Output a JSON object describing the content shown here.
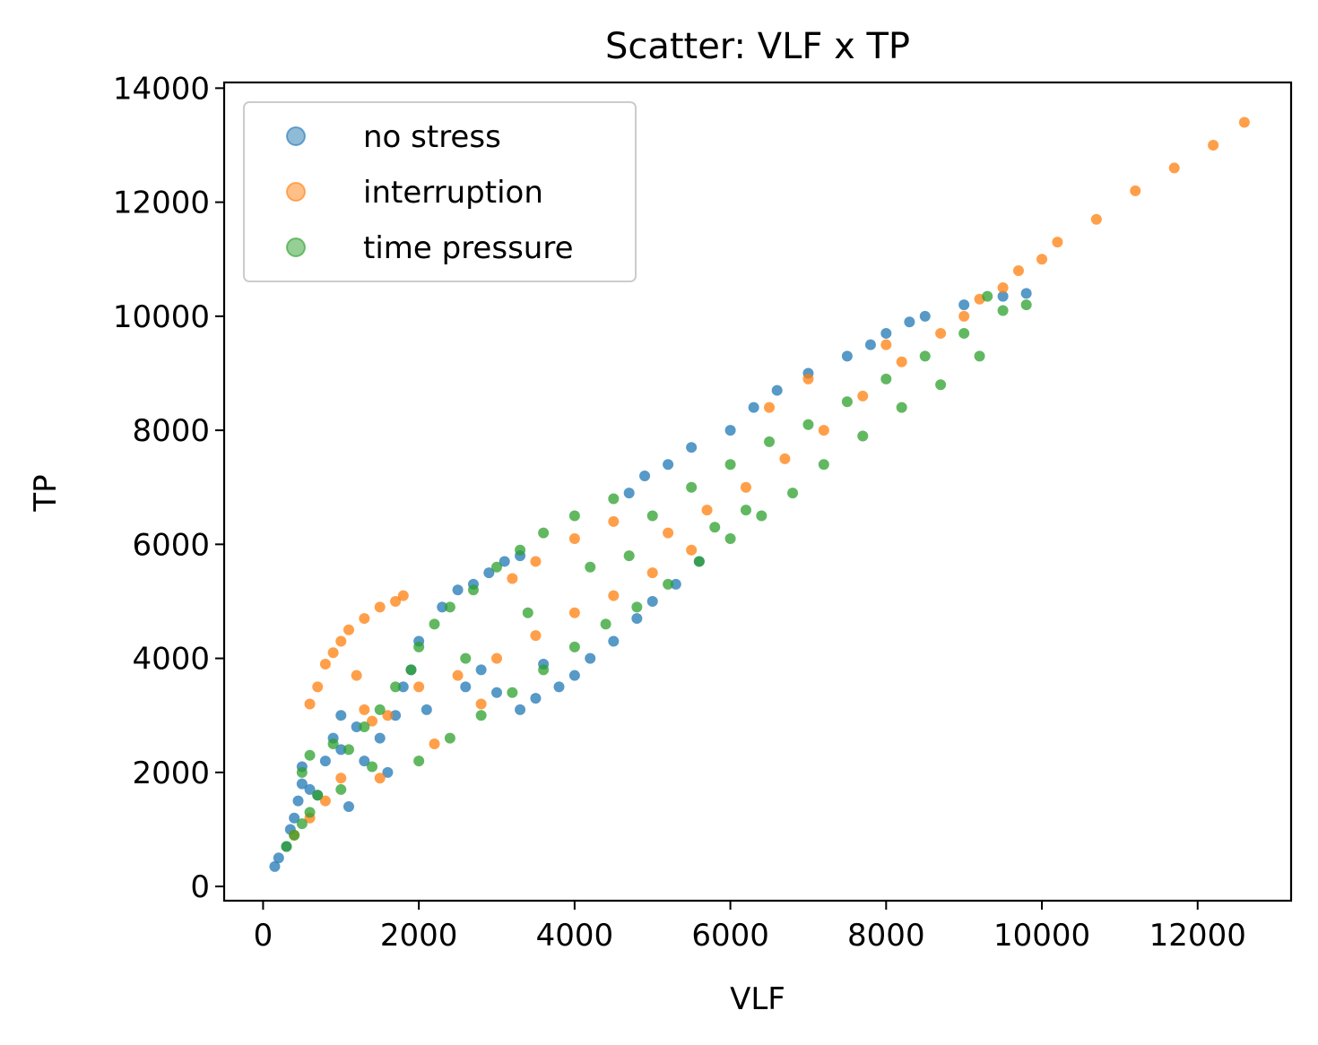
{
  "chart_data": {
    "type": "scatter",
    "title": "Scatter: VLF x TP",
    "xlabel": "VLF",
    "ylabel": "TP",
    "xlim": [
      -500,
      13200
    ],
    "ylim": [
      -250,
      14100
    ],
    "xticks": [
      0,
      2000,
      4000,
      6000,
      8000,
      10000,
      12000
    ],
    "yticks": [
      0,
      2000,
      4000,
      6000,
      8000,
      10000,
      12000,
      14000
    ],
    "grid": false,
    "legend_position": "upper-left",
    "series": [
      {
        "name": "no stress",
        "color": "#1f77b4",
        "points": [
          [
            150,
            350
          ],
          [
            200,
            500
          ],
          [
            300,
            700
          ],
          [
            350,
            1000
          ],
          [
            400,
            1200
          ],
          [
            450,
            1500
          ],
          [
            500,
            1800
          ],
          [
            500,
            2100
          ],
          [
            600,
            1700
          ],
          [
            700,
            1600
          ],
          [
            800,
            2200
          ],
          [
            900,
            2600
          ],
          [
            1000,
            3000
          ],
          [
            1000,
            2400
          ],
          [
            1200,
            2800
          ],
          [
            1300,
            2200
          ],
          [
            1500,
            2600
          ],
          [
            1700,
            3000
          ],
          [
            1800,
            3500
          ],
          [
            1900,
            3800
          ],
          [
            2000,
            4300
          ],
          [
            2100,
            3100
          ],
          [
            2300,
            4900
          ],
          [
            2500,
            5200
          ],
          [
            2700,
            5300
          ],
          [
            2900,
            5500
          ],
          [
            3100,
            5700
          ],
          [
            3300,
            5800
          ],
          [
            2800,
            3800
          ],
          [
            3000,
            3400
          ],
          [
            3300,
            3100
          ],
          [
            3500,
            3300
          ],
          [
            3800,
            3500
          ],
          [
            4000,
            3700
          ],
          [
            4200,
            4000
          ],
          [
            4500,
            4300
          ],
          [
            4800,
            4700
          ],
          [
            5000,
            5000
          ],
          [
            5300,
            5300
          ],
          [
            5600,
            5700
          ],
          [
            4700,
            6900
          ],
          [
            4900,
            7200
          ],
          [
            5200,
            7400
          ],
          [
            5500,
            7700
          ],
          [
            6000,
            8000
          ],
          [
            6300,
            8400
          ],
          [
            6600,
            8700
          ],
          [
            7000,
            9000
          ],
          [
            7500,
            9300
          ],
          [
            8000,
            9700
          ],
          [
            8500,
            10000
          ],
          [
            9000,
            10200
          ],
          [
            9500,
            10350
          ],
          [
            9800,
            10400
          ],
          [
            7800,
            9500
          ],
          [
            8300,
            9900
          ],
          [
            3600,
            3900
          ],
          [
            2600,
            3500
          ],
          [
            1600,
            2000
          ],
          [
            1100,
            1400
          ]
        ]
      },
      {
        "name": "interruption",
        "color": "#ff7f0e",
        "points": [
          [
            600,
            3200
          ],
          [
            700,
            3500
          ],
          [
            800,
            3900
          ],
          [
            900,
            4100
          ],
          [
            1000,
            4300
          ],
          [
            1100,
            4500
          ],
          [
            1300,
            4700
          ],
          [
            1500,
            4900
          ],
          [
            1700,
            5000
          ],
          [
            1800,
            5100
          ],
          [
            1200,
            3700
          ],
          [
            1300,
            3100
          ],
          [
            1400,
            2900
          ],
          [
            1600,
            3000
          ],
          [
            2000,
            3500
          ],
          [
            2500,
            3700
          ],
          [
            3000,
            4000
          ],
          [
            3500,
            4400
          ],
          [
            4000,
            4800
          ],
          [
            4500,
            5100
          ],
          [
            5000,
            5500
          ],
          [
            5500,
            5900
          ],
          [
            5200,
            6200
          ],
          [
            5700,
            6600
          ],
          [
            6200,
            7000
          ],
          [
            6700,
            7500
          ],
          [
            7200,
            8000
          ],
          [
            7700,
            8600
          ],
          [
            8200,
            9200
          ],
          [
            8700,
            9700
          ],
          [
            9200,
            10300
          ],
          [
            9700,
            10800
          ],
          [
            10200,
            11300
          ],
          [
            10700,
            11700
          ],
          [
            11200,
            12200
          ],
          [
            11700,
            12600
          ],
          [
            12200,
            13000
          ],
          [
            12600,
            13400
          ],
          [
            7000,
            8900
          ],
          [
            6500,
            8400
          ],
          [
            400,
            900
          ],
          [
            600,
            1200
          ],
          [
            800,
            1500
          ],
          [
            1000,
            1900
          ],
          [
            2200,
            2500
          ],
          [
            3200,
            5400
          ],
          [
            3500,
            5700
          ],
          [
            4000,
            6100
          ],
          [
            4500,
            6400
          ],
          [
            8000,
            9500
          ],
          [
            9000,
            10000
          ],
          [
            9500,
            10500
          ],
          [
            10000,
            11000
          ],
          [
            1500,
            1900
          ],
          [
            2800,
            3200
          ]
        ]
      },
      {
        "name": "time pressure",
        "color": "#2ca02c",
        "points": [
          [
            300,
            700
          ],
          [
            400,
            900
          ],
          [
            500,
            1100
          ],
          [
            600,
            1300
          ],
          [
            700,
            1600
          ],
          [
            500,
            2000
          ],
          [
            600,
            2300
          ],
          [
            900,
            2500
          ],
          [
            1100,
            2400
          ],
          [
            1300,
            2800
          ],
          [
            1500,
            3100
          ],
          [
            1700,
            3500
          ],
          [
            1900,
            3800
          ],
          [
            2000,
            4200
          ],
          [
            2200,
            4600
          ],
          [
            2400,
            4900
          ],
          [
            2700,
            5200
          ],
          [
            3000,
            5600
          ],
          [
            3300,
            5900
          ],
          [
            3600,
            6200
          ],
          [
            4000,
            6500
          ],
          [
            4500,
            6800
          ],
          [
            2000,
            2200
          ],
          [
            2400,
            2600
          ],
          [
            2800,
            3000
          ],
          [
            3200,
            3400
          ],
          [
            3600,
            3800
          ],
          [
            4000,
            4200
          ],
          [
            4400,
            4600
          ],
          [
            4800,
            4900
          ],
          [
            5200,
            5300
          ],
          [
            5600,
            5700
          ],
          [
            6000,
            6100
          ],
          [
            6400,
            6500
          ],
          [
            6800,
            6900
          ],
          [
            5000,
            6500
          ],
          [
            5500,
            7000
          ],
          [
            6000,
            7400
          ],
          [
            6500,
            7800
          ],
          [
            7000,
            8100
          ],
          [
            7500,
            8500
          ],
          [
            8000,
            8900
          ],
          [
            8500,
            9300
          ],
          [
            9000,
            9700
          ],
          [
            9500,
            10100
          ],
          [
            9800,
            10200
          ],
          [
            9300,
            10350
          ],
          [
            7200,
            7400
          ],
          [
            7700,
            7900
          ],
          [
            8200,
            8400
          ],
          [
            8700,
            8800
          ],
          [
            9200,
            9300
          ],
          [
            1000,
            1700
          ],
          [
            1400,
            2100
          ],
          [
            3400,
            4800
          ],
          [
            4200,
            5600
          ],
          [
            2600,
            4000
          ],
          [
            6200,
            6600
          ],
          [
            5800,
            6300
          ],
          [
            4700,
            5800
          ]
        ]
      }
    ]
  }
}
